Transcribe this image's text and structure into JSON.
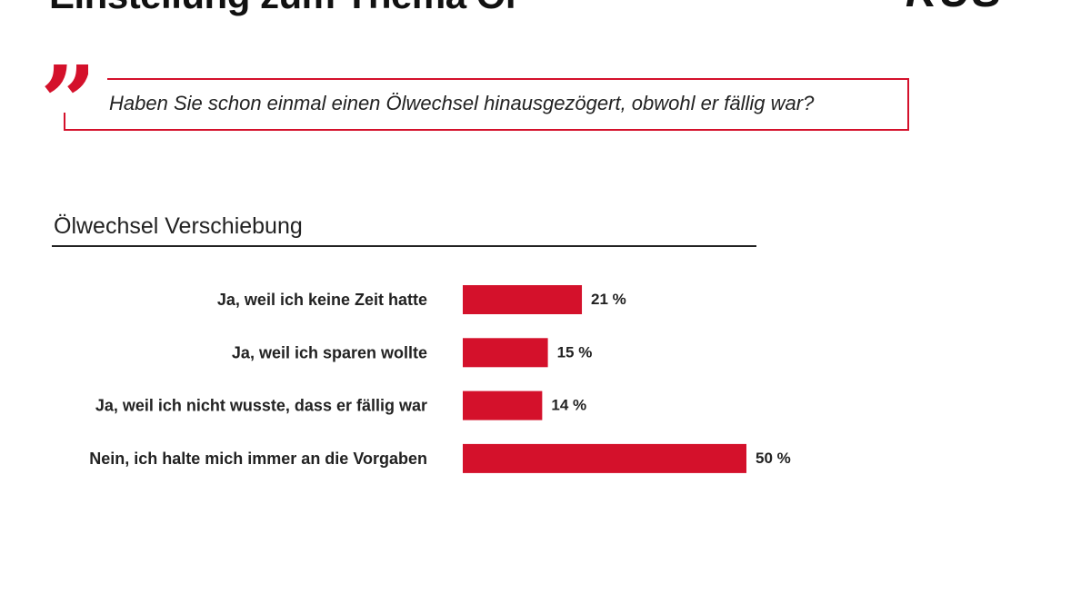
{
  "header": {
    "headline": "Einstellung zum Thema Öl",
    "logo": "KÜS"
  },
  "question": {
    "quote_glyph": "”",
    "text": "Haben Sie schon einmal einen Ölwechsel hinausgezögert, obwohl er fällig war?"
  },
  "colors": {
    "accent": "#d4112b",
    "text": "#222222"
  },
  "chart_data": {
    "type": "bar",
    "orientation": "horizontal",
    "title": "Ölwechsel Verschiebung",
    "categories": [
      "Ja, weil ich keine Zeit hatte",
      "Ja, weil ich sparen wollte",
      "Ja, weil ich nicht wusste, dass er fällig war",
      "Nein, ich halte mich immer an die Vorgaben"
    ],
    "values": [
      21,
      15,
      14,
      50
    ],
    "value_labels": [
      "21 %",
      "15 %",
      "14 %",
      "50 %"
    ],
    "unit": "%",
    "xlim": [
      0,
      50
    ],
    "xlabel": "",
    "ylabel": "",
    "grid": false,
    "legend": "none"
  }
}
